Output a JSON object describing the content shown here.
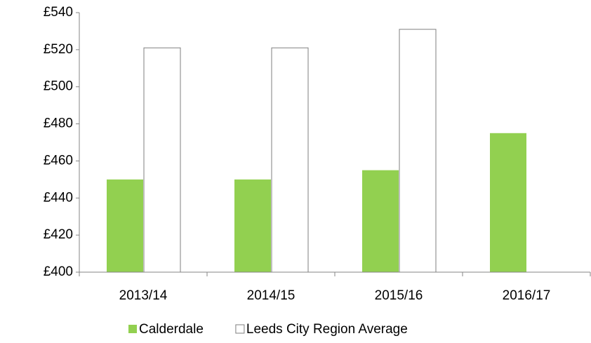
{
  "chart_data": {
    "type": "bar",
    "categories": [
      "2013/14",
      "2014/15",
      "2015/16",
      "2016/17"
    ],
    "series": [
      {
        "name": "Calderdale",
        "color": "#92d050",
        "values": [
          450,
          450,
          455,
          475
        ]
      },
      {
        "name": "Leeds City Region Average",
        "color": "#ffffff",
        "values": [
          521,
          521,
          531,
          null
        ]
      }
    ],
    "ylim": [
      400,
      540
    ],
    "yticks": [
      {
        "value": 400,
        "label": "£400"
      },
      {
        "value": 420,
        "label": "£420"
      },
      {
        "value": 440,
        "label": "£440"
      },
      {
        "value": 460,
        "label": "£460"
      },
      {
        "value": 480,
        "label": "£480"
      },
      {
        "value": 500,
        "label": "£500"
      },
      {
        "value": 520,
        "label": "£520"
      },
      {
        "value": 540,
        "label": "£540"
      }
    ],
    "grid": false,
    "legend": "bottom"
  }
}
